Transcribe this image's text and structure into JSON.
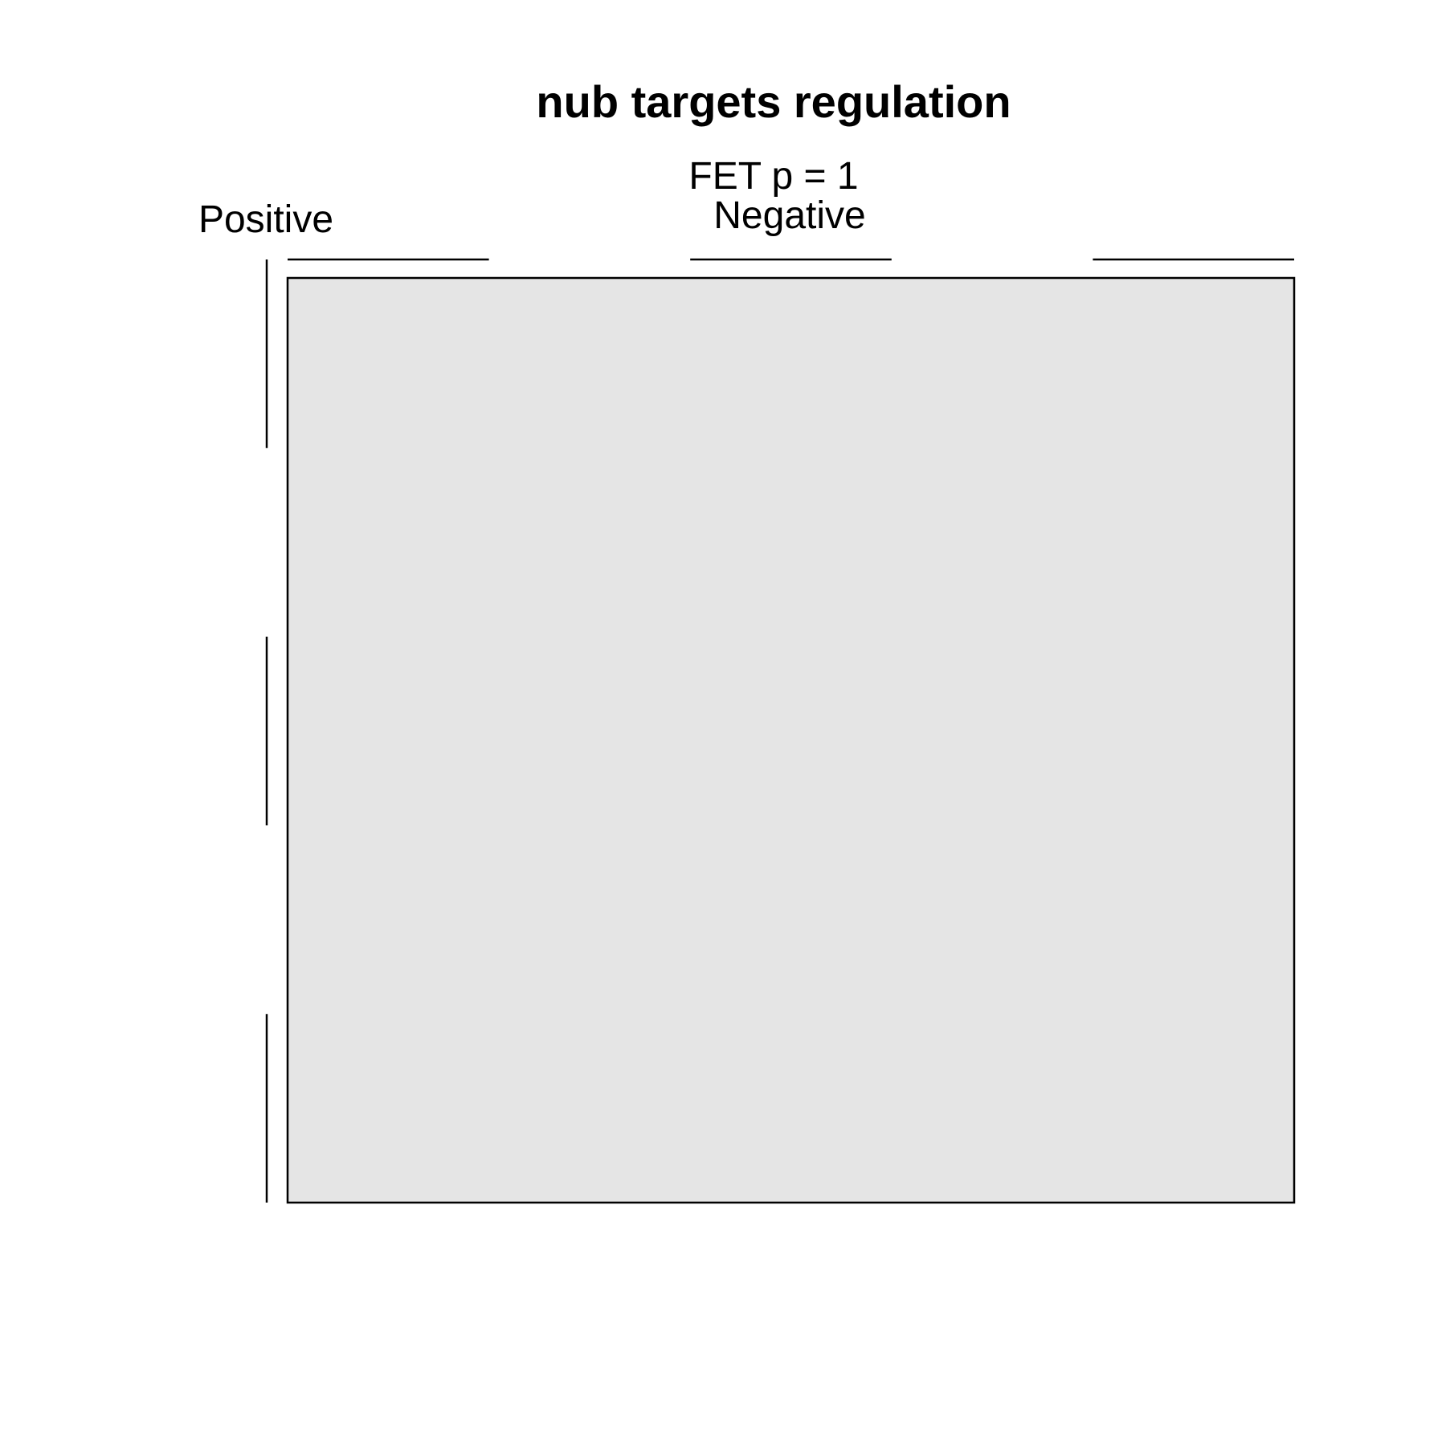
{
  "chart_data": {
    "type": "heatmap",
    "title": "nub targets regulation",
    "subtitle": "FET p = 1",
    "x_label": "Negative",
    "y_label": "Positive",
    "rows": 1,
    "cols": 1,
    "cells": [
      {
        "value": null,
        "fill": "#e5e5e5"
      }
    ],
    "column_bracket_count": 3,
    "row_bracket_count": 3,
    "colors": {
      "cell_fill": "#e5e5e5",
      "border": "#000000",
      "background": "#ffffff"
    }
  }
}
